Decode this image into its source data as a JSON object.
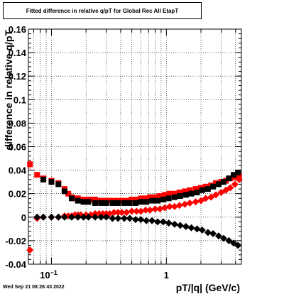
{
  "title": "Fitted difference in relative q/pT for Global Rec All EtapT",
  "datestamp": "Wed Sep 21 08:26:43 2022",
  "chart_data": {
    "type": "scatter",
    "title": "Fitted difference in relative q/pT for Global Rec All EtapT",
    "xlabel": "pT/|q| (GeV/c)",
    "ylabel": "difference in relative q/pT",
    "xscale": "log",
    "xlim": [
      0.063,
      4.5
    ],
    "ylim": [
      -0.04,
      0.16
    ],
    "grid": true,
    "x_ticks": [
      {
        "value": 0.1,
        "label": "10^-1"
      },
      {
        "value": 1,
        "label": "1"
      }
    ],
    "y_ticks": [
      -0.04,
      -0.02,
      0,
      0.02,
      0.04,
      0.06,
      0.08,
      0.1,
      0.12,
      0.14,
      0.16
    ],
    "colors": {
      "red": "#ff0000",
      "black": "#000000"
    },
    "series": [
      {
        "color": "red",
        "marker": "square",
        "x": [
          0.065,
          0.075,
          0.085,
          0.1,
          0.115,
          0.13,
          0.14,
          0.15,
          0.16,
          0.17,
          0.18,
          0.2,
          0.22,
          0.24,
          0.26,
          0.28,
          0.3,
          0.32,
          0.35,
          0.38,
          0.41,
          0.45,
          0.5,
          0.55,
          0.6,
          0.66,
          0.72,
          0.8,
          0.88,
          0.97,
          1.07,
          1.18,
          1.3,
          1.45,
          1.6,
          1.8,
          2.0,
          2.2,
          2.45,
          2.7,
          3.0,
          3.3,
          3.6,
          3.95,
          4.3
        ],
        "y": [
          0.045,
          0.036,
          0.033,
          0.031,
          0.029,
          0.024,
          0.02,
          0.017,
          0.016,
          0.016,
          0.015,
          0.015,
          0.015,
          0.015,
          0.014,
          0.014,
          0.014,
          0.014,
          0.014,
          0.014,
          0.014,
          0.014,
          0.015,
          0.015,
          0.016,
          0.016,
          0.017,
          0.017,
          0.018,
          0.019,
          0.02,
          0.02,
          0.021,
          0.022,
          0.023,
          0.024,
          0.025,
          0.026,
          0.027,
          0.029,
          0.03,
          0.031,
          0.033,
          0.034,
          0.035
        ],
        "yerr": [
          0.004,
          0.002,
          0.001,
          0.001,
          0.001,
          0.001,
          0.001,
          0.001,
          0.001,
          0.001,
          0.001,
          0.001,
          0.001,
          0.001,
          0.001,
          0.001,
          0.001,
          0.001,
          0.001,
          0.001,
          0.001,
          0.001,
          0.001,
          0.001,
          0.001,
          0.001,
          0.001,
          0.001,
          0.001,
          0.001,
          0.001,
          0.001,
          0.001,
          0.001,
          0.001,
          0.001,
          0.001,
          0.001,
          0.001,
          0.001,
          0.001,
          0.001,
          0.001,
          0.001,
          0.001
        ]
      },
      {
        "color": "black",
        "marker": "square",
        "x": [
          0.085,
          0.1,
          0.115,
          0.13,
          0.15,
          0.17,
          0.19,
          0.21,
          0.24,
          0.27,
          0.3,
          0.34,
          0.38,
          0.43,
          0.48,
          0.54,
          0.6,
          0.67,
          0.75,
          0.84,
          0.94,
          1.05,
          1.18,
          1.32,
          1.48,
          1.65,
          1.85,
          2.05,
          2.3,
          2.55,
          2.85,
          3.15,
          3.5,
          3.85,
          4.2
        ],
        "y": [
          0.032,
          0.03,
          0.028,
          0.022,
          0.016,
          0.014,
          0.013,
          0.013,
          0.012,
          0.012,
          0.012,
          0.012,
          0.012,
          0.012,
          0.012,
          0.012,
          0.013,
          0.013,
          0.014,
          0.014,
          0.015,
          0.016,
          0.017,
          0.018,
          0.019,
          0.02,
          0.021,
          0.023,
          0.024,
          0.026,
          0.028,
          0.03,
          0.033,
          0.036,
          0.038
        ],
        "yerr": [
          0.001,
          0.001,
          0.001,
          0.001,
          0.001,
          0.001,
          0.001,
          0.001,
          0.001,
          0.001,
          0.001,
          0.001,
          0.001,
          0.001,
          0.001,
          0.001,
          0.001,
          0.001,
          0.001,
          0.001,
          0.001,
          0.001,
          0.001,
          0.001,
          0.001,
          0.001,
          0.001,
          0.001,
          0.001,
          0.001,
          0.001,
          0.001,
          0.001,
          0.001,
          0.001
        ]
      },
      {
        "color": "red",
        "marker": "diamond",
        "x": [
          0.065,
          0.075,
          0.085,
          0.1,
          0.115,
          0.13,
          0.14,
          0.15,
          0.16,
          0.17,
          0.18,
          0.2,
          0.22,
          0.24,
          0.26,
          0.28,
          0.3,
          0.32,
          0.35,
          0.38,
          0.41,
          0.45,
          0.5,
          0.55,
          0.6,
          0.66,
          0.72,
          0.8,
          0.88,
          0.97,
          1.07,
          1.18,
          1.3,
          1.45,
          1.6,
          1.8,
          2.0,
          2.2,
          2.45,
          2.7,
          3.0,
          3.3,
          3.6,
          3.95,
          4.3
        ],
        "y": [
          -0.028,
          -0.001,
          0.0,
          0.0,
          0.0,
          0.001,
          0.001,
          0.001,
          0.002,
          0.002,
          0.002,
          0.002,
          0.002,
          0.003,
          0.003,
          0.003,
          0.003,
          0.003,
          0.004,
          0.004,
          0.004,
          0.004,
          0.005,
          0.005,
          0.005,
          0.006,
          0.006,
          0.007,
          0.007,
          0.008,
          0.009,
          0.009,
          0.01,
          0.011,
          0.012,
          0.013,
          0.014,
          0.016,
          0.017,
          0.019,
          0.021,
          0.023,
          0.025,
          0.028,
          0.032
        ],
        "yerr": [
          0.003,
          0.001,
          0.001,
          0.001,
          0.001,
          0.001,
          0.001,
          0.001,
          0.001,
          0.001,
          0.001,
          0.001,
          0.001,
          0.001,
          0.001,
          0.001,
          0.001,
          0.001,
          0.001,
          0.001,
          0.001,
          0.001,
          0.001,
          0.001,
          0.001,
          0.001,
          0.001,
          0.001,
          0.001,
          0.001,
          0.001,
          0.001,
          0.001,
          0.001,
          0.001,
          0.001,
          0.001,
          0.001,
          0.001,
          0.001,
          0.001,
          0.001,
          0.001,
          0.001,
          0.001
        ]
      },
      {
        "color": "black",
        "marker": "diamond",
        "x": [
          0.075,
          0.085,
          0.1,
          0.115,
          0.13,
          0.15,
          0.17,
          0.19,
          0.21,
          0.24,
          0.27,
          0.3,
          0.34,
          0.38,
          0.43,
          0.48,
          0.54,
          0.6,
          0.67,
          0.75,
          0.84,
          0.94,
          1.05,
          1.18,
          1.32,
          1.48,
          1.65,
          1.85,
          2.05,
          2.3,
          2.55,
          2.85,
          3.15,
          3.5,
          3.85,
          4.2
        ],
        "y": [
          0.0,
          0.0,
          0.0,
          0.0,
          0.0,
          0.0,
          0.0,
          0.0,
          0.0,
          0.0,
          0.0,
          0.0,
          -0.001,
          -0.001,
          -0.001,
          -0.001,
          -0.002,
          -0.002,
          -0.003,
          -0.003,
          -0.004,
          -0.004,
          -0.005,
          -0.006,
          -0.007,
          -0.008,
          -0.009,
          -0.01,
          -0.011,
          -0.013,
          -0.014,
          -0.016,
          -0.018,
          -0.02,
          -0.022,
          -0.024
        ],
        "yerr": [
          0.001,
          0.001,
          0.001,
          0.001,
          0.001,
          0.001,
          0.001,
          0.001,
          0.001,
          0.001,
          0.001,
          0.001,
          0.001,
          0.001,
          0.001,
          0.001,
          0.001,
          0.001,
          0.001,
          0.001,
          0.001,
          0.001,
          0.001,
          0.001,
          0.001,
          0.001,
          0.001,
          0.001,
          0.001,
          0.001,
          0.001,
          0.001,
          0.001,
          0.001,
          0.001,
          0.001
        ]
      }
    ]
  }
}
